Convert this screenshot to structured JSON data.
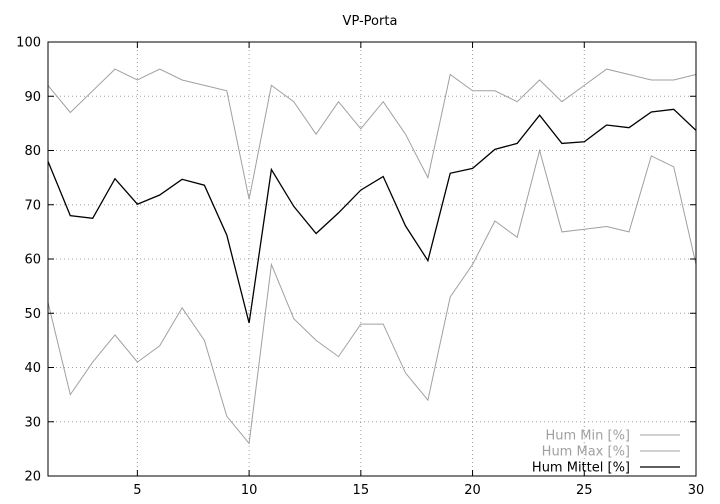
{
  "chart_data": {
    "type": "line",
    "title": "VP-Porta",
    "xlabel": "",
    "ylabel": "",
    "xlim": [
      1,
      30
    ],
    "ylim": [
      20,
      100
    ],
    "x_ticks": [
      5,
      10,
      15,
      20,
      25,
      30
    ],
    "y_ticks": [
      20,
      30,
      40,
      50,
      60,
      70,
      80,
      90,
      100
    ],
    "grid": true,
    "legend_position": "bottom-right",
    "x": [
      1,
      2,
      3,
      4,
      5,
      6,
      7,
      8,
      9,
      10,
      11,
      12,
      13,
      14,
      15,
      16,
      17,
      18,
      19,
      20,
      21,
      22,
      23,
      24,
      25,
      26,
      27,
      28,
      29,
      30
    ],
    "series": [
      {
        "name": "Hum Min [%]",
        "color": "#a0a0a0",
        "values": [
          52,
          35,
          41,
          46,
          41,
          44,
          51,
          45,
          31,
          26,
          59,
          49,
          45,
          42,
          48,
          48,
          39,
          34,
          53,
          59,
          67,
          64,
          80,
          65,
          65.5,
          66,
          65,
          79,
          77,
          59
        ]
      },
      {
        "name": "Hum Max [%]",
        "color": "#a0a0a0",
        "values": [
          92,
          87,
          91,
          95,
          93,
          95,
          93,
          92,
          91,
          71,
          92,
          89,
          83,
          89,
          84,
          89,
          83,
          75,
          94,
          91,
          91,
          89,
          93,
          89,
          92,
          95,
          94,
          93,
          93,
          94
        ]
      },
      {
        "name": "Hum Mittel [%]",
        "color": "#000000",
        "values": [
          78,
          68,
          67.5,
          74.8,
          70.1,
          71.8,
          74.7,
          73.6,
          64.4,
          48.2,
          76.5,
          69.7,
          64.7,
          68.5,
          72.7,
          75.2,
          66.1,
          59.7,
          75.8,
          76.7,
          80.2,
          81.3,
          86.5,
          81.3,
          81.6,
          84.7,
          84.2,
          87.1,
          87.6,
          83.7
        ]
      }
    ]
  }
}
